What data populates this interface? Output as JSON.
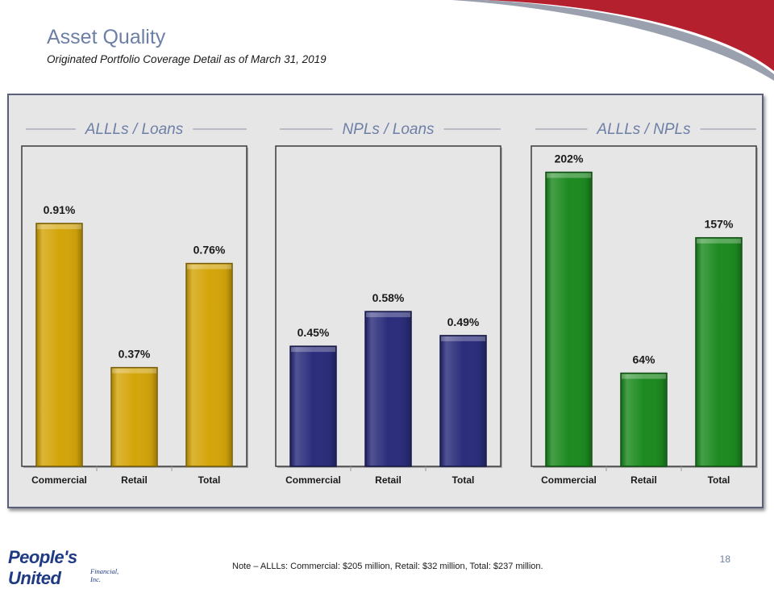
{
  "header": {
    "title": "Asset Quality",
    "subtitle": "Originated Portfolio Coverage Detail as of March 31, 2019"
  },
  "colors": {
    "gold": "#d4a50a",
    "navy": "#2b2d7c",
    "green": "#1d8a20",
    "swoosh_red": "#b5202e",
    "title_blue": "#6d7fa6"
  },
  "chart_data": [
    {
      "type": "bar",
      "title": "ALLLs / Loans",
      "categories": [
        "Commercial",
        "Retail",
        "Total"
      ],
      "values": [
        0.91,
        0.37,
        0.76
      ],
      "value_labels": [
        "0.91%",
        "0.37%",
        "0.76%"
      ],
      "unit": "%",
      "ylim": [
        0,
        1.2
      ],
      "color": "gold",
      "grid": false,
      "legend": "none"
    },
    {
      "type": "bar",
      "title": "NPLs / Loans",
      "categories": [
        "Commercial",
        "Retail",
        "Total"
      ],
      "values": [
        0.45,
        0.58,
        0.49
      ],
      "value_labels": [
        "0.45%",
        "0.58%",
        "0.49%"
      ],
      "unit": "%",
      "ylim": [
        0,
        1.2
      ],
      "color": "navy",
      "grid": false,
      "legend": "none"
    },
    {
      "type": "bar",
      "title": "ALLLs / NPLs",
      "categories": [
        "Commercial",
        "Retail",
        "Total"
      ],
      "values": [
        202,
        64,
        157
      ],
      "value_labels": [
        "202%",
        "64%",
        "157%"
      ],
      "unit": "%",
      "ylim": [
        0,
        220
      ],
      "color": "green",
      "grid": false,
      "legend": "none"
    }
  ],
  "footer": {
    "note": "Note – ALLLs: Commercial: $205 million, Retail: $32 million, Total: $237 million.",
    "page_number": "18",
    "logo_name": "People's United",
    "logo_sub": "Financial, Inc."
  }
}
